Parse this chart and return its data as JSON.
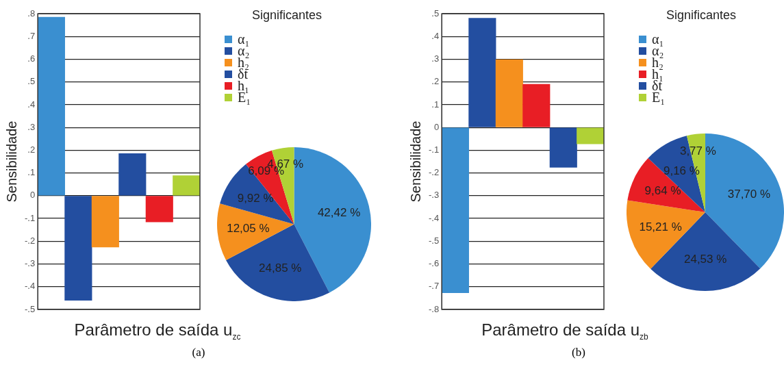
{
  "chart_data": [
    {
      "type": "bar",
      "xlabel": "Parâmetro de saída u$_{zc}$",
      "ylabel": "Sensibilidade",
      "categories": [
        null,
        null,
        null,
        null,
        null,
        null
      ],
      "values": [
        0.785,
        -0.46,
        -0.226,
        0.185,
        -0.115,
        0.088
      ],
      "colors": [
        "#3a8fd0",
        "#234ea0",
        "#f5901e",
        "#234ea0",
        "#e81e25",
        "#b0d136"
      ],
      "ylim": [
        -0.5,
        0.8
      ],
      "yticks": [
        {
          "value": 0.8,
          "label": ".8"
        },
        {
          "value": 0.7,
          "label": ".7"
        },
        {
          "value": 0.6,
          "label": ".6"
        },
        {
          "value": 0.5,
          "label": ".5"
        },
        {
          "value": 0.4,
          "label": ".4"
        },
        {
          "value": 0.3,
          "label": ".3"
        },
        {
          "value": 0.2,
          "label": ".2"
        },
        {
          "value": 0.1,
          "label": ".1"
        },
        0,
        {
          "value": -0.1,
          "label": "-.1"
        },
        {
          "value": -0.2,
          "label": "-.2"
        },
        {
          "value": -0.3,
          "label": "-.3"
        },
        {
          "value": -0.4,
          "label": "-.4"
        },
        {
          "value": -0.5,
          "label": "-.5"
        }
      ],
      "grid": "y",
      "tick_labels": "y",
      "annotations": [
        "(a)"
      ]
    },
    {
      "type": "pie",
      "legend_title": "Significantes",
      "legend": "top left",
      "categories": [
        "α₁",
        "α₂",
        "h₂",
        "δt",
        "h₁",
        "E₁"
      ],
      "values": [
        42.42,
        24.85,
        12.05,
        9.92,
        6.09,
        4.67
      ],
      "colors": [
        "#3a8fd0",
        "#234ea0",
        "#f5901e",
        "#234ea0",
        "#e81e25",
        "#b0d136"
      ],
      "value_labels": [
        "42,42 %",
        "24,85 %",
        "12,05 %",
        "9,92 %",
        "6,09 %",
        "4,67 %"
      ]
    },
    {
      "type": "bar",
      "xlabel": "Parâmetro de saída u$_{zb}$",
      "ylabel": "Sensibilidade",
      "categories": [
        null,
        null,
        null,
        null,
        null,
        null
      ],
      "values": [
        -0.727,
        0.48,
        0.298,
        0.19,
        -0.175,
        -0.072
      ],
      "colors": [
        "#3a8fd0",
        "#234ea0",
        "#f5901e",
        "#e81e25",
        "#234ea0",
        "#b0d136"
      ],
      "ylim": [
        -0.8,
        0.5
      ],
      "yticks": [
        {
          "value": 0.5,
          "label": ".5"
        },
        {
          "value": 0.4,
          "label": ".4"
        },
        {
          "value": 0.3,
          "label": ".3"
        },
        {
          "value": 0.2,
          "label": ".2"
        },
        {
          "value": 0.1,
          "label": ".1"
        },
        0,
        {
          "value": -0.1,
          "label": "-.1"
        },
        {
          "value": -0.2,
          "label": "-.2"
        },
        {
          "value": -0.3,
          "label": "-.3"
        },
        {
          "value": -0.4,
          "label": "-.4"
        },
        {
          "value": -0.5,
          "label": "-.5"
        },
        {
          "value": -0.6,
          "label": "-.6"
        },
        {
          "value": -0.7,
          "label": "-.7"
        },
        {
          "value": -0.8,
          "label": "-.8"
        }
      ],
      "grid": "y",
      "tick_labels": "y",
      "annotations": [
        "(b)"
      ]
    },
    {
      "type": "pie",
      "legend_title": "Significantes",
      "legend": "top left",
      "categories": [
        "α₁",
        "α₂",
        "h₂",
        "h₁",
        "δt",
        "E₁"
      ],
      "values": [
        37.7,
        24.53,
        15.21,
        9.64,
        9.16,
        3.77
      ],
      "colors": [
        "#3a8fd0",
        "#234ea0",
        "#f5901e",
        "#e81e25",
        "#234ea0",
        "#b0d136"
      ],
      "value_labels": [
        "37,70 %",
        "24,53 %",
        "15,21 %",
        "9,64 %",
        "9,16 %",
        "3,77 %"
      ]
    }
  ]
}
